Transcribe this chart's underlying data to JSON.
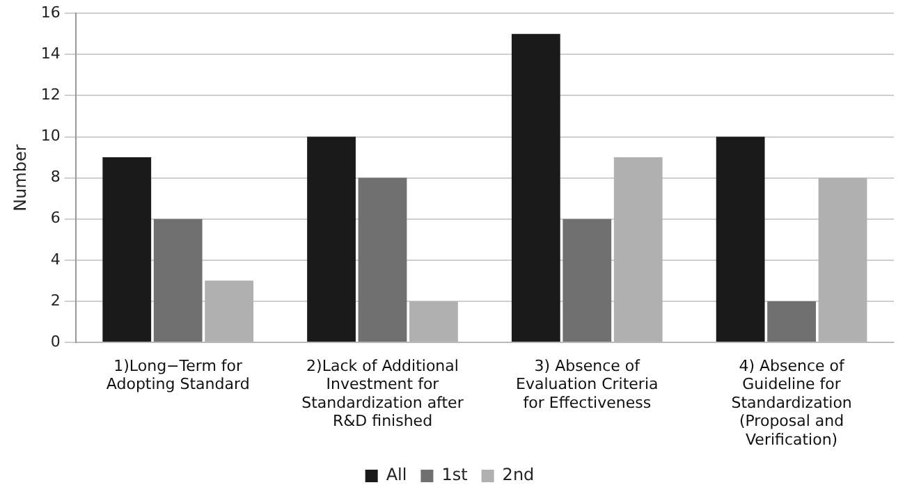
{
  "chart_data": {
    "type": "bar",
    "ylabel": "Number",
    "categories": [
      "1)Long−Term for\nAdopting Standard",
      "2)Lack of Additional\nInvestment for\nStandardization after\nR&D finished",
      "3) Absence of\nEvaluation Criteria\nfor Effectiveness",
      "4) Absence of\nGuideline for\nStandardization\n(Proposal and\nVerification)"
    ],
    "series": [
      {
        "name": "All",
        "color": "#1a1a1a",
        "values": [
          9,
          10,
          15,
          10
        ]
      },
      {
        "name": "1st",
        "color": "#707070",
        "values": [
          6,
          8,
          6,
          2
        ]
      },
      {
        "name": "2nd",
        "color": "#b0b0b0",
        "values": [
          3,
          2,
          9,
          8
        ]
      }
    ],
    "ylim": [
      0,
      16
    ],
    "yticks": [
      0,
      2,
      4,
      6,
      8,
      10,
      12,
      14,
      16
    ],
    "grid": "y",
    "legend": "bottom"
  }
}
